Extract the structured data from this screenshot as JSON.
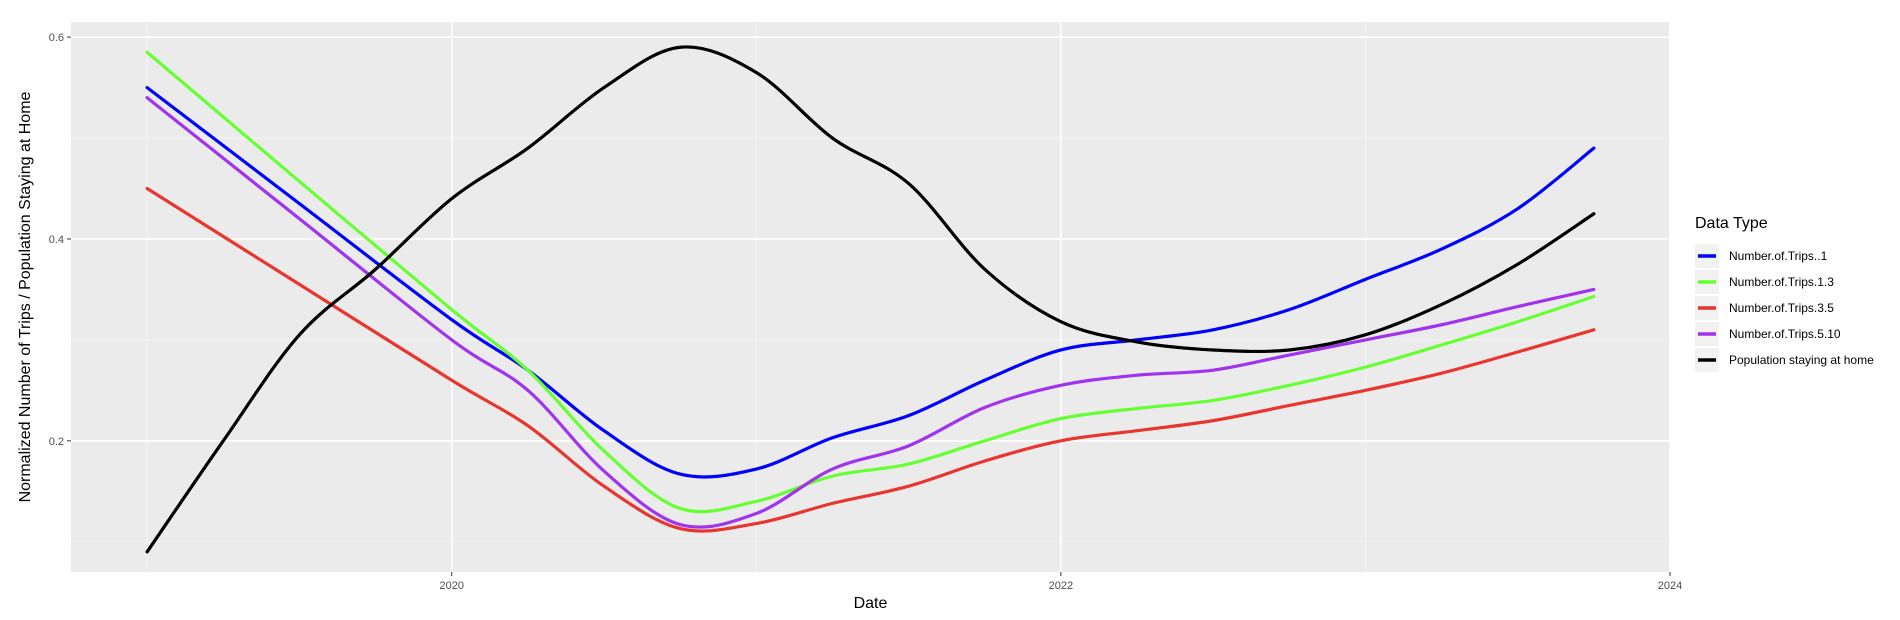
{
  "chart_data": {
    "type": "line",
    "title": "",
    "xlabel": "Date",
    "ylabel": "Normalized Number of Trips / Population Staying at Home",
    "xlim": [
      2018.75,
      2024.0
    ],
    "ylim": [
      0.07,
      0.615
    ],
    "x_ticks": [
      2020,
      2022,
      2024
    ],
    "y_ticks": [
      0.2,
      0.4,
      0.6
    ],
    "x_tick_labels": [
      "2020",
      "2022",
      "2024"
    ],
    "y_tick_labels": [
      "0.2",
      "0.4",
      "0.6"
    ],
    "grid": true,
    "legend": {
      "title": "Data Type",
      "position": "right"
    },
    "series": [
      {
        "name": "Number.of.Trips..1",
        "color": "#0000ff",
        "x": [
          2019.0,
          2019.5,
          2020.0,
          2020.25,
          2020.5,
          2020.75,
          2021.0,
          2021.25,
          2021.5,
          2021.75,
          2022.0,
          2022.25,
          2022.5,
          2022.75,
          2023.0,
          2023.25,
          2023.5,
          2023.75
        ],
        "y": [
          0.55,
          0.435,
          0.32,
          0.27,
          0.21,
          0.167,
          0.172,
          0.203,
          0.225,
          0.26,
          0.29,
          0.3,
          0.31,
          0.33,
          0.36,
          0.39,
          0.43,
          0.49
        ]
      },
      {
        "name": "Number.of.Trips.1.3",
        "color": "#66ff33",
        "x": [
          2019.0,
          2019.5,
          2020.0,
          2020.25,
          2020.5,
          2020.75,
          2021.0,
          2021.25,
          2021.5,
          2021.75,
          2022.0,
          2022.25,
          2022.5,
          2022.75,
          2023.0,
          2023.25,
          2023.5,
          2023.75
        ],
        "y": [
          0.585,
          0.457,
          0.33,
          0.27,
          0.19,
          0.133,
          0.14,
          0.165,
          0.177,
          0.2,
          0.222,
          0.232,
          0.24,
          0.255,
          0.273,
          0.295,
          0.318,
          0.343
        ]
      },
      {
        "name": "Number.of.Trips.3.5",
        "color": "#e8352e",
        "x": [
          2019.0,
          2019.5,
          2020.0,
          2020.25,
          2020.5,
          2020.75,
          2021.0,
          2021.25,
          2021.5,
          2021.75,
          2022.0,
          2022.25,
          2022.5,
          2022.75,
          2023.0,
          2023.25,
          2023.5,
          2023.75
        ],
        "y": [
          0.45,
          0.355,
          0.26,
          0.215,
          0.155,
          0.113,
          0.118,
          0.138,
          0.155,
          0.18,
          0.2,
          0.21,
          0.22,
          0.235,
          0.25,
          0.267,
          0.288,
          0.31
        ]
      },
      {
        "name": "Number.of.Trips.5.10",
        "color": "#a033ee",
        "x": [
          2019.0,
          2019.5,
          2020.0,
          2020.25,
          2020.5,
          2020.75,
          2021.0,
          2021.25,
          2021.5,
          2021.75,
          2022.0,
          2022.25,
          2022.5,
          2022.75,
          2023.0,
          2023.25,
          2023.5,
          2023.75
        ],
        "y": [
          0.54,
          0.42,
          0.3,
          0.25,
          0.17,
          0.117,
          0.128,
          0.172,
          0.195,
          0.233,
          0.255,
          0.265,
          0.27,
          0.285,
          0.3,
          0.315,
          0.333,
          0.35
        ]
      },
      {
        "name": "Population staying at home",
        "color": "#000000",
        "x": [
          2019.0,
          2019.25,
          2019.5,
          2019.75,
          2020.0,
          2020.25,
          2020.5,
          2020.75,
          2021.0,
          2021.25,
          2021.5,
          2021.75,
          2022.0,
          2022.25,
          2022.5,
          2022.75,
          2023.0,
          2023.25,
          2023.5,
          2023.75
        ],
        "y": [
          0.09,
          0.2,
          0.305,
          0.37,
          0.44,
          0.49,
          0.55,
          0.59,
          0.565,
          0.5,
          0.455,
          0.37,
          0.318,
          0.298,
          0.29,
          0.29,
          0.305,
          0.335,
          0.375,
          0.425
        ]
      }
    ]
  }
}
